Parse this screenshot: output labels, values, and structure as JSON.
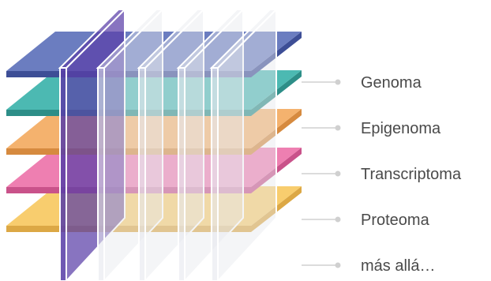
{
  "layers": [
    {
      "label": "Genoma",
      "top": "#6b7dc0",
      "side": "#3d4e96"
    },
    {
      "label": "Epigenoma",
      "top": "#4cb9b2",
      "side": "#2d8e88"
    },
    {
      "label": "Transcriptoma",
      "top": "#f4b26e",
      "side": "#d68a3f"
    },
    {
      "label": "Proteoma",
      "top": "#ee7fb1",
      "side": "#c9528a"
    },
    {
      "label": "más allá…",
      "top": "#f8cd6e",
      "side": "#dca845"
    }
  ],
  "colors": {
    "connector": "#d0d0d0",
    "plane_purple": "#5a3fa8",
    "plane_glass": "#e6e8ee",
    "plane_edge": "#ffffff"
  }
}
